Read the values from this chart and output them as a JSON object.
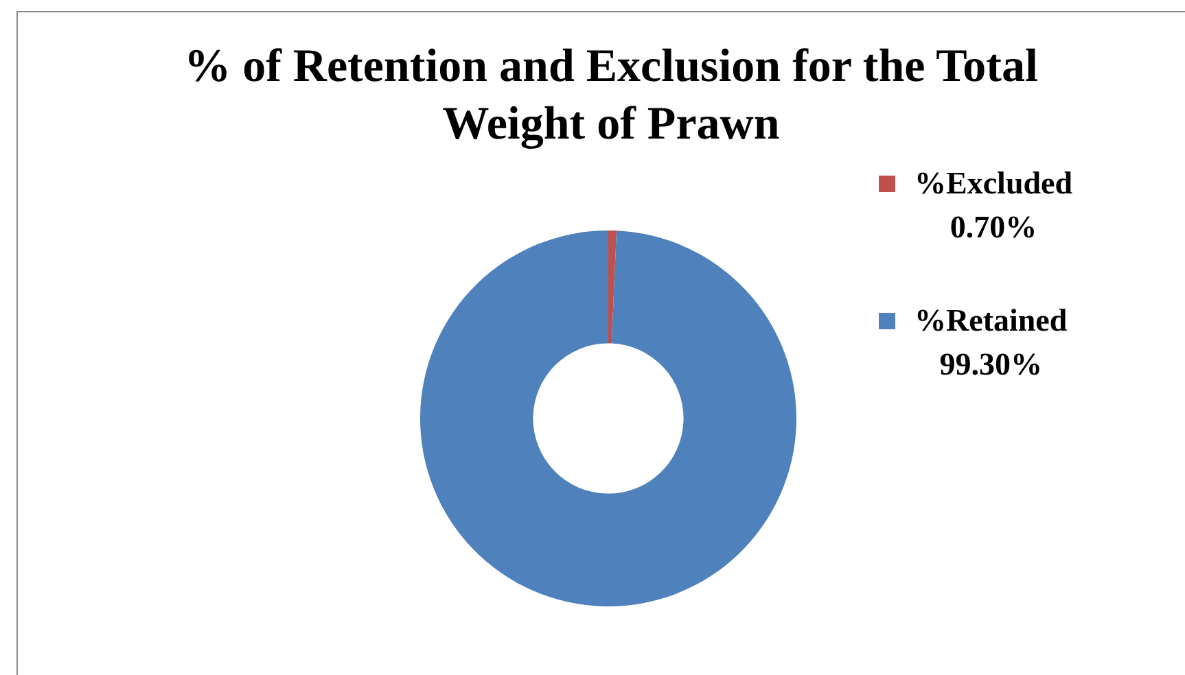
{
  "chart_data": {
    "type": "donut",
    "title": "% of Retention and Exclusion for the Total Weight of Prawn",
    "categories": [
      "%Excluded",
      "%Retained"
    ],
    "values": [
      0.7,
      99.3
    ],
    "colors": [
      "#c0504d",
      "#4f81bd"
    ],
    "value_labels": [
      "0.70%",
      "99.30%"
    ],
    "legend": "right"
  }
}
